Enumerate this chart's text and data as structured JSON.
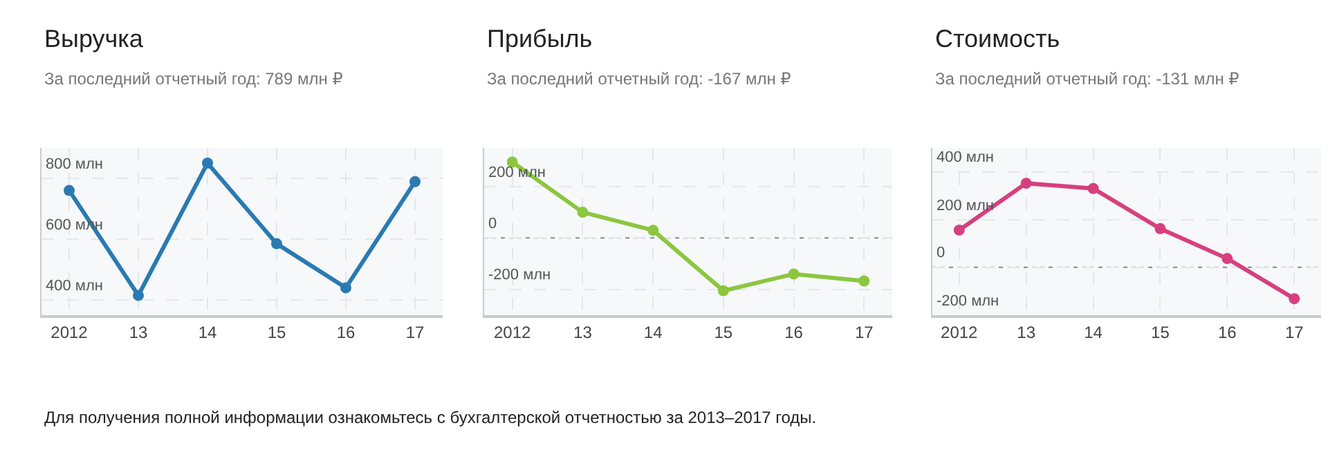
{
  "chart_data": [
    {
      "type": "line",
      "title": "Выручка",
      "subtitle": "За последний отчетный год: 789 млн ₽",
      "categories": [
        "2012",
        "13",
        "14",
        "15",
        "16",
        "17"
      ],
      "series": [
        {
          "color": "#2a7ab0",
          "values": [
            760,
            415,
            850,
            585,
            440,
            789
          ]
        }
      ],
      "ylim": [
        350,
        900
      ],
      "yticks": [
        {
          "value": 400,
          "label": "400 млн"
        },
        {
          "value": 600,
          "label": "600 млн"
        },
        {
          "value": 800,
          "label": "800 млн"
        }
      ],
      "grid": true,
      "marker": "circle",
      "line_style": "solid",
      "annotations": [
        "Для получения полной информации ознакомьтесь с бухгалтерской отчетностью за 2013–2017 годы."
      ]
    },
    {
      "type": "line",
      "title": "Прибыль",
      "subtitle": "За последний отчетный год: -167 млн ₽",
      "categories": [
        "2012",
        "13",
        "14",
        "15",
        "16",
        "17"
      ],
      "series": [
        {
          "color": "#8cc63f",
          "values": [
            295,
            100,
            30,
            -205,
            -140,
            -167
          ]
        }
      ],
      "ylim": [
        -300,
        350
      ],
      "yticks": [
        {
          "value": -200,
          "label": "-200 млн"
        },
        0,
        {
          "value": 200,
          "label": "200 млн"
        }
      ],
      "ref_lines": [
        {
          "axis": "y",
          "value": 0,
          "color": "#888888",
          "line_style": "dotted"
        }
      ],
      "grid": true,
      "marker": "circle",
      "line_style": "solid"
    },
    {
      "type": "line",
      "title": "Стоимость",
      "subtitle": "За последний отчетный год: -131 млн ₽",
      "categories": [
        "2012",
        "13",
        "14",
        "15",
        "16",
        "17"
      ],
      "series": [
        {
          "color": "#d6407e",
          "values": [
            156,
            352,
            330,
            162,
            37,
            -131
          ]
        }
      ],
      "ylim": [
        -200,
        500
      ],
      "yticks": [
        {
          "value": -200,
          "label": "-200 млн"
        },
        0,
        {
          "value": 200,
          "label": "200 млн"
        },
        {
          "value": 400,
          "label": "400 млн"
        }
      ],
      "ref_lines": [
        {
          "axis": "y",
          "value": 0,
          "color": "#888888",
          "line_style": "dotted"
        }
      ],
      "grid": true,
      "marker": "circle",
      "line_style": "solid"
    }
  ]
}
